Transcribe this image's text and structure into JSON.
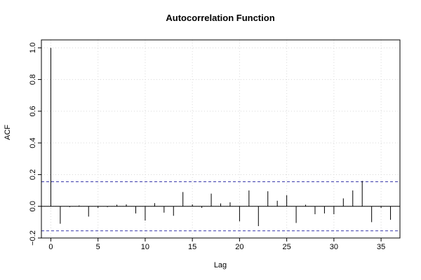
{
  "chart_data": {
    "type": "bar",
    "title": "Autocorrelation Function",
    "xlabel": "Lag",
    "ylabel": "ACF",
    "xlim": [
      -1,
      37
    ],
    "ylim": [
      -0.2,
      1.05
    ],
    "x_ticks": [
      0,
      5,
      10,
      15,
      20,
      25,
      30,
      35
    ],
    "y_ticks": [
      -0.2,
      0.0,
      0.2,
      0.4,
      0.6,
      0.8,
      1.0
    ],
    "x_tick_labels": [
      "0",
      "5",
      "10",
      "15",
      "20",
      "25",
      "30",
      "35"
    ],
    "y_tick_labels": [
      "−0.2",
      "0.0",
      "0.2",
      "0.4",
      "0.6",
      "0.8",
      "1.0"
    ],
    "grid": true,
    "confidence_bounds": [
      0.155,
      -0.155
    ],
    "lags": [
      0,
      1,
      2,
      3,
      4,
      5,
      6,
      7,
      8,
      9,
      10,
      11,
      12,
      13,
      14,
      15,
      16,
      17,
      18,
      19,
      20,
      21,
      22,
      23,
      24,
      25,
      26,
      27,
      28,
      29,
      30,
      31,
      32,
      33,
      34,
      35,
      36
    ],
    "values": [
      1.0,
      -0.11,
      -0.005,
      0.005,
      -0.065,
      -0.01,
      -0.005,
      0.01,
      0.012,
      -0.045,
      -0.09,
      0.02,
      -0.04,
      -0.06,
      0.09,
      0.012,
      -0.01,
      0.08,
      0.018,
      0.025,
      -0.095,
      0.1,
      -0.125,
      0.095,
      0.035,
      0.07,
      -0.105,
      0.01,
      -0.05,
      -0.045,
      -0.05,
      0.05,
      0.1,
      0.16,
      -0.1,
      -0.01,
      -0.085
    ]
  },
  "colors": {
    "bars": "#000000",
    "confidence": "#3333aa",
    "grid": "#d9d9d9",
    "frame": "#000000"
  }
}
